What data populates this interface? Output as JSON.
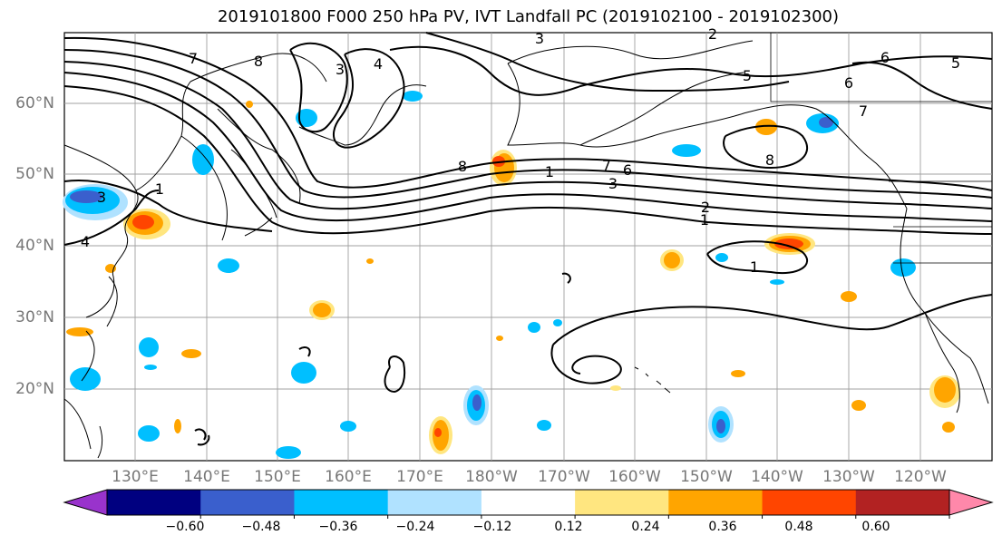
{
  "title": "2019101800 F000 250 hPa PV, IVT Landfall PC (2019102100 - 2019102300)",
  "lat_labels": [
    "60°N",
    "50°N",
    "40°N",
    "30°N",
    "20°N"
  ],
  "lon_labels": [
    "130°E",
    "140°E",
    "150°E",
    "160°E",
    "170°E",
    "180°W",
    "170°W",
    "160°W",
    "150°W",
    "140°W",
    "130°W",
    "120°W"
  ],
  "contour_labels": [
    "7",
    "8",
    "3",
    "4",
    "3",
    "2",
    "6",
    "5",
    "6",
    "7",
    "5",
    "7",
    "6",
    "8",
    "3",
    "2",
    "1",
    "8",
    "1",
    "3",
    "4",
    "1",
    "1"
  ],
  "colorbar": {
    "ticks": [
      "−0.60",
      "−0.48",
      "−0.36",
      "−0.24",
      "−0.12",
      "0.12",
      "0.24",
      "0.36",
      "0.48",
      "0.60"
    ],
    "colors": [
      "#9933cc",
      "#000080",
      "#3a5fcd",
      "#00bfff",
      "#b0e2ff",
      "#ffffff",
      "#ffe680",
      "#ffa500",
      "#ff4500",
      "#b22222",
      "#ff88aa"
    ]
  },
  "colors": {
    "land_outline": "#000000",
    "grid": "#999999",
    "contour": "#000000"
  }
}
